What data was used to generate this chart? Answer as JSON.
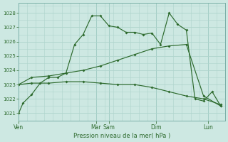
{
  "title": "",
  "xlabel": "Pression niveau de la mer( hPa )",
  "ylabel": "",
  "background_color": "#cde8e2",
  "grid_color": "#aed4cc",
  "line_color": "#2d6a2d",
  "ylim": [
    1020.5,
    1028.7
  ],
  "yticks": [
    1021,
    1022,
    1023,
    1024,
    1025,
    1026,
    1027,
    1028
  ],
  "xlim": [
    0,
    48
  ],
  "x_day_labels": [
    "Ven",
    "Mar",
    "Sam",
    "Dim",
    "Lun"
  ],
  "x_day_positions": [
    0,
    18,
    21,
    32,
    44
  ],
  "x_day_vlines": [
    18,
    21,
    32,
    44
  ],
  "series1_x": [
    0,
    1,
    3,
    5,
    7,
    9,
    11,
    13,
    15,
    17,
    19,
    21,
    23,
    25,
    27,
    29,
    31,
    33,
    35,
    37,
    39,
    41,
    43,
    45,
    47
  ],
  "series1_y": [
    1021.0,
    1021.7,
    1022.3,
    1023.1,
    1023.5,
    1023.5,
    1023.8,
    1025.8,
    1026.5,
    1027.8,
    1027.8,
    1027.1,
    1027.0,
    1026.65,
    1026.65,
    1026.5,
    1026.6,
    1025.8,
    1028.0,
    1027.2,
    1026.8,
    1022.0,
    1021.85,
    1022.5,
    1021.5
  ],
  "series2_x": [
    0,
    3,
    7,
    11,
    15,
    19,
    23,
    27,
    31,
    35,
    39,
    43,
    47
  ],
  "series2_y": [
    1023.0,
    1023.5,
    1023.6,
    1023.8,
    1024.0,
    1024.3,
    1024.7,
    1025.1,
    1025.5,
    1025.7,
    1025.8,
    1022.2,
    1021.5
  ],
  "series3_x": [
    0,
    3,
    7,
    11,
    15,
    19,
    23,
    27,
    31,
    35,
    39,
    43,
    47
  ],
  "series3_y": [
    1023.0,
    1023.1,
    1023.1,
    1023.2,
    1023.2,
    1023.1,
    1023.0,
    1023.0,
    1022.8,
    1022.5,
    1022.2,
    1022.0,
    1021.6
  ]
}
